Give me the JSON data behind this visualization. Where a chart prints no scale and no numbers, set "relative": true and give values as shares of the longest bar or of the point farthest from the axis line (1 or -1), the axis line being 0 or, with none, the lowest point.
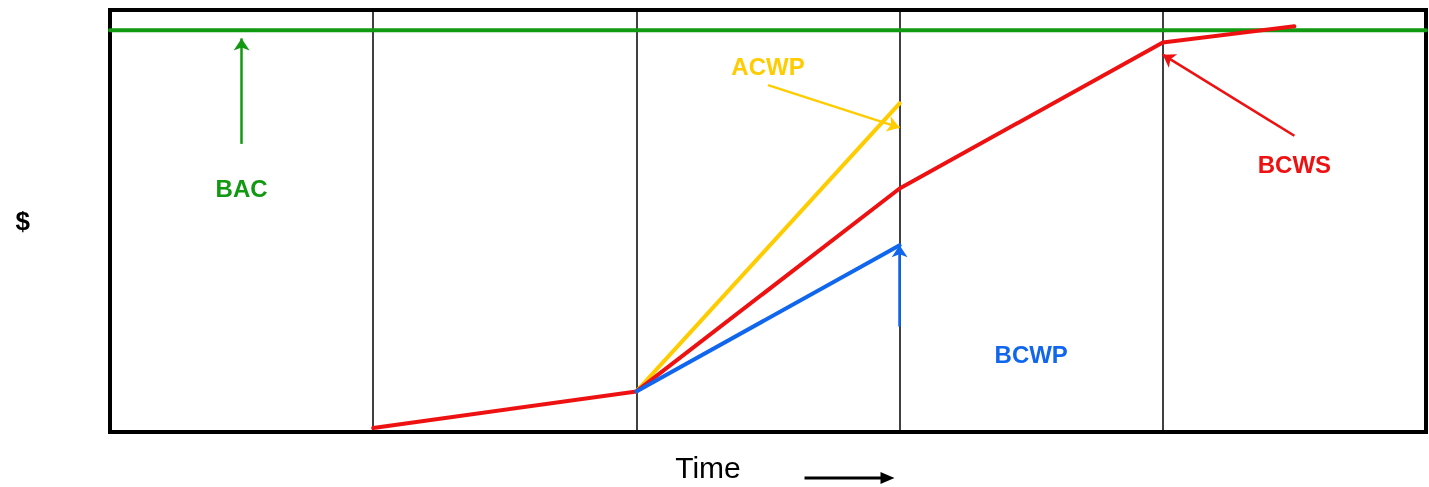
{
  "chart_data": {
    "type": "line",
    "relative": true,
    "xlabel": "Time",
    "ylabel": "$",
    "categories": [
      null,
      null,
      null,
      null,
      null,
      null,
      null,
      null,
      null,
      null,
      null
    ],
    "grid": "x",
    "legend": false,
    "marker": "none",
    "line_style": "solid",
    "series": [
      {
        "name": "BAC",
        "color": "#119911",
        "values": [
          0.99,
          null,
          null,
          null,
          null,
          null,
          null,
          null,
          null,
          null,
          0.99
        ]
      },
      {
        "name": "ACWP",
        "color": "#ffcc00",
        "values": [
          null,
          null,
          null,
          null,
          0.1,
          null,
          0.81,
          null,
          null,
          null,
          null
        ]
      },
      {
        "name": "BCWS",
        "color": "#ee1111",
        "values": [
          null,
          null,
          0.01,
          null,
          0.1,
          null,
          0.6,
          null,
          0.96,
          1,
          null
        ]
      },
      {
        "name": "BCWP",
        "color": "#1166ee",
        "values": [
          null,
          null,
          null,
          null,
          0.1,
          null,
          0.46,
          null,
          null,
          null,
          null
        ]
      }
    ]
  }
}
